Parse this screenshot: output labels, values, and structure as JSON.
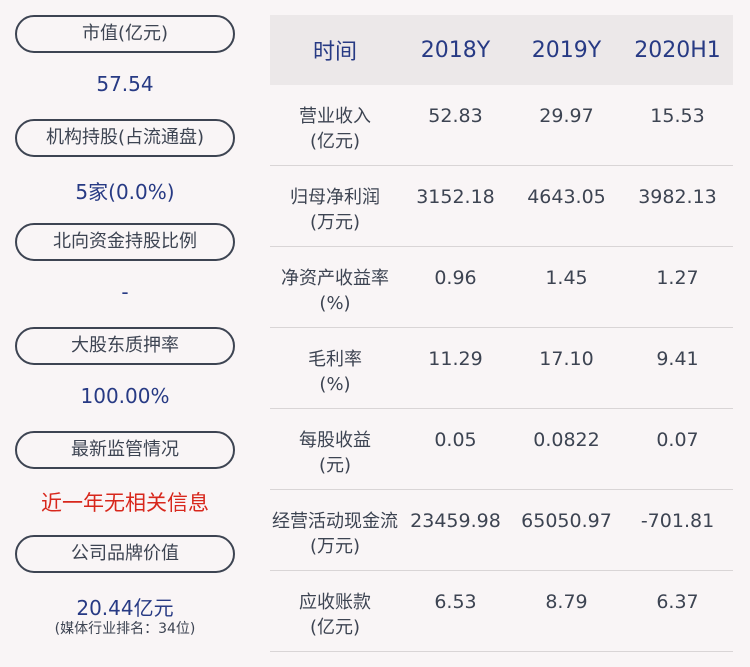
{
  "left": {
    "items": [
      {
        "label": "市值(亿元)",
        "value": "57.54"
      },
      {
        "label": "机构持股(占流通盘)",
        "value": "5家(0.0%)"
      },
      {
        "label": "北向资金持股比例",
        "value": "-"
      },
      {
        "label": "大股东质押率",
        "value": "100.00%"
      },
      {
        "label": "最新监管情况",
        "value": "近一年无相关信息"
      },
      {
        "label": "公司品牌价值",
        "value": "20.44亿元",
        "note": "(媒体行业排名：34位)"
      }
    ],
    "alert_color": "#d8271c",
    "value_color": "#273a84"
  },
  "table": {
    "headers": [
      "时间",
      "2018Y",
      "2019Y",
      "2020H1"
    ],
    "rows": [
      {
        "label1": "营业收入",
        "label2": "(亿元)",
        "values": [
          "52.83",
          "29.97",
          "15.53"
        ]
      },
      {
        "label1": "归母净利润",
        "label2": "(万元)",
        "values": [
          "3152.18",
          "4643.05",
          "3982.13"
        ]
      },
      {
        "label1": "净资产收益率",
        "label2": "(%)",
        "values": [
          "0.96",
          "1.45",
          "1.27"
        ]
      },
      {
        "label1": "毛利率",
        "label2": "(%)",
        "values": [
          "11.29",
          "17.10",
          "9.41"
        ]
      },
      {
        "label1": "每股收益",
        "label2": "(元)",
        "values": [
          "0.05",
          "0.0822",
          "0.07"
        ]
      },
      {
        "label1": "经营活动现金流",
        "label2": "(万元)",
        "values": [
          "23459.98",
          "65050.97",
          "-701.81"
        ]
      },
      {
        "label1": "应收账款",
        "label2": "(亿元)",
        "values": [
          "6.53",
          "8.79",
          "6.37"
        ]
      }
    ]
  }
}
